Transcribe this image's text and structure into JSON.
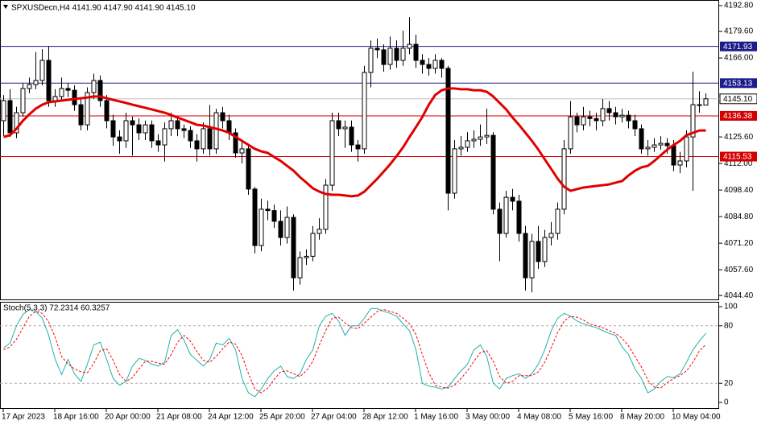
{
  "chart_data": {
    "type": "candlestick",
    "title": "SPXUSDecn,H4  4141.90 4147.90 4141.90 4145.10",
    "categories": [
      "17 Apr 2023",
      null,
      null,
      null,
      null,
      null,
      null,
      null,
      "18 Apr 16:00",
      null,
      null,
      null,
      null,
      null,
      null,
      null,
      "20 Apr 00:00",
      null,
      null,
      null,
      null,
      null,
      null,
      null,
      "21 Apr 08:00",
      null,
      null,
      null,
      null,
      null,
      null,
      null,
      "24 Apr 12:00",
      null,
      null,
      null,
      null,
      null,
      null,
      null,
      "25 Apr 20:00",
      null,
      null,
      null,
      null,
      null,
      null,
      null,
      "27 Apr 04:00",
      null,
      null,
      null,
      null,
      null,
      null,
      null,
      "28 Apr 12:00",
      null,
      null,
      null,
      null,
      null,
      null,
      null,
      "1 May 16:00",
      null,
      null,
      null,
      null,
      null,
      null,
      null,
      "3 May 00:00",
      null,
      null,
      null,
      null,
      null,
      null,
      null,
      "4 May 08:00",
      null,
      null,
      null,
      null,
      null,
      null,
      null,
      "5 May 16:00",
      null,
      null,
      null,
      null,
      null,
      null,
      null,
      "8 May 20:00",
      null,
      null,
      null,
      null,
      null,
      null,
      null,
      "10 May 04:00",
      null,
      null,
      null,
      null,
      null
    ],
    "ohlc": [
      [
        4133.9,
        4147.0,
        4126.0,
        4144.2
      ],
      [
        4144.2,
        4150.0,
        4125.5,
        4127.7
      ],
      [
        4127.7,
        4141.0,
        4125.0,
        4138.0
      ],
      [
        4138.0,
        4153.0,
        4136.0,
        4150.4
      ],
      [
        4150.4,
        4156.0,
        4148.0,
        4152.4
      ],
      [
        4152.4,
        4169.0,
        4150.0,
        4154.5
      ],
      [
        4154.5,
        4170.5,
        4152.0,
        4164.8
      ],
      [
        4164.8,
        4172.0,
        4141.0,
        4144.2
      ],
      [
        4144.2,
        4150.0,
        4141.0,
        4146.3
      ],
      [
        4146.3,
        4156.0,
        4144.0,
        4150.4
      ],
      [
        4150.4,
        4153.0,
        4146.0,
        4149.5
      ],
      [
        4149.5,
        4152.0,
        4139.0,
        4142.1
      ],
      [
        4142.1,
        4145.0,
        4129.0,
        4131.8
      ],
      [
        4131.8,
        4151.0,
        4129.0,
        4148.3
      ],
      [
        4148.3,
        4158.0,
        4145.0,
        4154.5
      ],
      [
        4154.5,
        4157.0,
        4141.0,
        4144.2
      ],
      [
        4144.2,
        4147.0,
        4130.0,
        4133.9
      ],
      [
        4133.9,
        4137.0,
        4121.0,
        4125.6
      ],
      [
        4125.6,
        4129.0,
        4117.0,
        4123.6
      ],
      [
        4123.6,
        4138.0,
        4120.0,
        4133.9
      ],
      [
        4133.9,
        4136.0,
        4116.0,
        4131.8
      ],
      [
        4131.8,
        4135.0,
        4124.0,
        4127.7
      ],
      [
        4127.7,
        4134.0,
        4124.0,
        4131.8
      ],
      [
        4131.8,
        4134.0,
        4120.0,
        4123.6
      ],
      [
        4123.6,
        4127.0,
        4118.0,
        4121.5
      ],
      [
        4121.5,
        4133.0,
        4113.0,
        4129.8
      ],
      [
        4129.8,
        4138.0,
        4126.0,
        4133.9
      ],
      [
        4133.9,
        4136.0,
        4126.0,
        4129.8
      ],
      [
        4129.8,
        4132.0,
        4125.0,
        4128.9
      ],
      [
        4128.9,
        4131.0,
        4120.0,
        4123.6
      ],
      [
        4123.6,
        4127.0,
        4113.0,
        4119.5
      ],
      [
        4119.5,
        4133.0,
        4117.0,
        4129.8
      ],
      [
        4129.8,
        4142.0,
        4116.0,
        4119.5
      ],
      [
        4119.5,
        4140.0,
        4117.0,
        4138.0
      ],
      [
        4138.0,
        4141.0,
        4130.0,
        4133.9
      ],
      [
        4133.9,
        4137.0,
        4124.0,
        4127.7
      ],
      [
        4127.7,
        4130.0,
        4115.0,
        4117.4
      ],
      [
        4117.4,
        4123.0,
        4112.0,
        4119.5
      ],
      [
        4119.5,
        4122.0,
        4096.0,
        4098.9
      ],
      [
        4098.9,
        4100.0,
        4066.0,
        4070.0
      ],
      [
        4070.0,
        4094.0,
        4067.0,
        4088.6
      ],
      [
        4088.6,
        4093.0,
        4083.0,
        4087.9
      ],
      [
        4087.9,
        4091.0,
        4079.0,
        4082.4
      ],
      [
        4082.4,
        4088.0,
        4070.0,
        4074.1
      ],
      [
        4074.1,
        4090.0,
        4071.0,
        4084.4
      ],
      [
        4084.4,
        4086.0,
        4047.0,
        4053.5
      ],
      [
        4053.5,
        4067.0,
        4050.0,
        4063.8
      ],
      [
        4063.8,
        4068.0,
        4060.0,
        4064.5
      ],
      [
        4064.5,
        4080.0,
        4062.0,
        4076.2
      ],
      [
        4076.2,
        4084.0,
        4073.0,
        4078.3
      ],
      [
        4078.3,
        4104.0,
        4076.0,
        4100.9
      ],
      [
        4100.9,
        4138.0,
        4098.0,
        4133.9
      ],
      [
        4133.9,
        4138.0,
        4126.0,
        4129.8
      ],
      [
        4129.8,
        4134.0,
        4120.0,
        4130.6
      ],
      [
        4130.6,
        4134.0,
        4118.0,
        4121.5
      ],
      [
        4121.5,
        4124.0,
        4113.0,
        4119.5
      ],
      [
        4119.5,
        4162.0,
        4117.0,
        4158.6
      ],
      [
        4158.6,
        4175.0,
        4151.0,
        4171.0
      ],
      [
        4171.0,
        4176.0,
        4166.0,
        4170.2
      ],
      [
        4170.2,
        4173.0,
        4159.0,
        4162.7
      ],
      [
        4162.7,
        4177.0,
        4160.0,
        4171.0
      ],
      [
        4171.0,
        4175.0,
        4161.0,
        4164.8
      ],
      [
        4164.8,
        4180.0,
        4162.0,
        4171.0
      ],
      [
        4171.0,
        4187.0,
        4168.0,
        4173.0
      ],
      [
        4173.0,
        4178.0,
        4161.0,
        4164.8
      ],
      [
        4164.8,
        4168.0,
        4158.0,
        4162.7
      ],
      [
        4162.7,
        4166.0,
        4157.0,
        4160.7
      ],
      [
        4160.7,
        4168.0,
        4158.0,
        4164.8
      ],
      [
        4164.8,
        4166.0,
        4156.0,
        4160.7
      ],
      [
        4160.7,
        4162.0,
        4088.0,
        4096.8
      ],
      [
        4096.8,
        4124.0,
        4094.0,
        4119.5
      ],
      [
        4119.5,
        4126.0,
        4116.0,
        4120.3
      ],
      [
        4120.3,
        4128.0,
        4118.0,
        4123.6
      ],
      [
        4123.6,
        4129.0,
        4120.0,
        4124.4
      ],
      [
        4124.4,
        4132.0,
        4121.0,
        4125.6
      ],
      [
        4125.6,
        4140.0,
        4122.0,
        4126.4
      ],
      [
        4126.4,
        4128.0,
        4086.0,
        4088.6
      ],
      [
        4088.6,
        4092.0,
        4062.0,
        4076.2
      ],
      [
        4076.2,
        4098.0,
        4074.0,
        4094.7
      ],
      [
        4094.7,
        4099.0,
        4088.0,
        4092.7
      ],
      [
        4092.7,
        4096.0,
        4072.0,
        4076.2
      ],
      [
        4076.2,
        4080.0,
        4047.0,
        4053.5
      ],
      [
        4053.5,
        4076.0,
        4046.0,
        4072.1
      ],
      [
        4072.1,
        4080.0,
        4058.0,
        4061.8
      ],
      [
        4061.8,
        4078.0,
        4059.0,
        4074.1
      ],
      [
        4074.1,
        4082.0,
        4070.0,
        4076.2
      ],
      [
        4076.2,
        4092.0,
        4073.0,
        4088.6
      ],
      [
        4088.6,
        4124.0,
        4086.0,
        4119.5
      ],
      [
        4119.5,
        4144.0,
        4117.0,
        4135.9
      ],
      [
        4135.9,
        4138.0,
        4128.0,
        4131.8
      ],
      [
        4131.8,
        4141.0,
        4129.0,
        4135.9
      ],
      [
        4135.9,
        4139.0,
        4131.0,
        4135.0
      ],
      [
        4135.0,
        4138.0,
        4129.0,
        4133.9
      ],
      [
        4133.9,
        4145.0,
        4131.0,
        4140.1
      ],
      [
        4140.1,
        4144.0,
        4134.0,
        4138.0
      ],
      [
        4138.0,
        4141.0,
        4132.0,
        4135.9
      ],
      [
        4135.9,
        4140.0,
        4133.0,
        4136.7
      ],
      [
        4136.7,
        4139.0,
        4130.0,
        4133.9
      ],
      [
        4133.9,
        4137.0,
        4126.0,
        4129.8
      ],
      [
        4129.8,
        4132.0,
        4117.0,
        4119.5
      ],
      [
        4119.5,
        4124.0,
        4116.0,
        4120.3
      ],
      [
        4120.3,
        4125.0,
        4118.0,
        4121.5
      ],
      [
        4121.5,
        4126.0,
        4119.0,
        4122.3
      ],
      [
        4122.3,
        4125.0,
        4117.0,
        4121.1
      ],
      [
        4121.1,
        4124.0,
        4108.0,
        4111.2
      ],
      [
        4111.2,
        4118.0,
        4107.0,
        4113.3
      ],
      [
        4113.3,
        4129.0,
        4110.0,
        4125.6
      ],
      [
        4125.6,
        4159.0,
        4098.0,
        4142.1
      ],
      [
        4142.1,
        4149.0,
        4138.0,
        4141.9
      ],
      [
        4141.9,
        4147.9,
        4141.9,
        4145.1
      ]
    ],
    "colors": {
      "up": "#ffffff",
      "down": "#000000",
      "outline": "#000000"
    },
    "ylim": [
      4042.0,
      4195.7
    ],
    "yticks": [
      {
        "value": 4192.8,
        "label": "4192.80"
      },
      {
        "value": 4179.6,
        "label": "4179.60"
      },
      {
        "value": 4166.0,
        "label": "4166.00"
      },
      {
        "value": 4125.6,
        "label": "4125.60"
      },
      {
        "value": 4112.0,
        "label": "4112.00"
      },
      {
        "value": 4098.4,
        "label": "4098.40"
      },
      {
        "value": 4084.8,
        "label": "4084.80"
      },
      {
        "value": 4071.2,
        "label": "4071.20"
      },
      {
        "value": 4057.6,
        "label": "4057.60"
      },
      {
        "value": 4044.4,
        "label": "4044.40"
      }
    ],
    "moving_average": {
      "color": "#e00000",
      "values": [
        4125.6,
        4126.5,
        4129.8,
        4133.9,
        4137.2,
        4140.1,
        4142.1,
        4143.4,
        4143.8,
        4144.2,
        4144.6,
        4145.0,
        4145.4,
        4145.8,
        4146.3,
        4146.3,
        4145.4,
        4144.6,
        4143.8,
        4143.0,
        4142.1,
        4141.3,
        4140.5,
        4139.7,
        4138.8,
        4138.0,
        4136.8,
        4135.5,
        4134.3,
        4133.1,
        4131.8,
        4131.4,
        4130.6,
        4129.8,
        4128.9,
        4127.7,
        4125.6,
        4123.6,
        4121.5,
        4119.5,
        4118.2,
        4117.4,
        4115.3,
        4113.3,
        4110.8,
        4108.3,
        4105.0,
        4102.2,
        4099.3,
        4097.6,
        4096.4,
        4096.0,
        4096.0,
        4095.6,
        4095.2,
        4095.6,
        4097.6,
        4100.9,
        4104.2,
        4107.9,
        4111.6,
        4115.8,
        4120.3,
        4125.6,
        4130.6,
        4135.9,
        4142.1,
        4147.1,
        4149.5,
        4150.4,
        4150.4,
        4150.0,
        4150.0,
        4149.5,
        4149.5,
        4148.7,
        4146.3,
        4143.0,
        4139.7,
        4135.5,
        4131.8,
        4127.7,
        4123.6,
        4119.1,
        4114.1,
        4109.2,
        4104.2,
        4100.1,
        4098.0,
        4098.9,
        4099.7,
        4100.1,
        4100.5,
        4100.9,
        4101.3,
        4102.2,
        4103.0,
        4105.9,
        4108.3,
        4110.0,
        4110.8,
        4113.3,
        4116.2,
        4119.1,
        4121.5,
        4123.6,
        4126.5,
        4127.7,
        4128.9,
        4128.9
      ]
    },
    "levels": [
      {
        "value": 4171.93,
        "color": "#1c1c8a"
      },
      {
        "value": 4153.13,
        "color": "#1c1c8a"
      },
      {
        "value": 4136.38,
        "color": "#d40000"
      },
      {
        "value": 4115.53,
        "color": "#d40000"
      }
    ],
    "last_price": {
      "value": 4145.1,
      "label": "4145.10",
      "color": "#c0c0c0"
    },
    "indicator": {
      "type": "line",
      "title": "Stoch(5,3,3) 72.2314 60.3257",
      "ylim": [
        -6.7,
        104.2
      ],
      "yticks": [
        0,
        20,
        80,
        100
      ],
      "levels": [
        20,
        80
      ],
      "main": {
        "color": "#20b2aa",
        "values": [
          57,
          62,
          80,
          92,
          97,
          95,
          88,
          70,
          45,
          29,
          45,
          30,
          22,
          40,
          60,
          63,
          45,
          25,
          18,
          22,
          38,
          46,
          44,
          40,
          38,
          42,
          70,
          76,
          65,
          50,
          44,
          38,
          45,
          62,
          60,
          67,
          55,
          25,
          10,
          6,
          14,
          25,
          33,
          38,
          27,
          25,
          30,
          45,
          55,
          80,
          90,
          93,
          85,
          70,
          80,
          80,
          88,
          98,
          98,
          95,
          93,
          90,
          82,
          75,
          55,
          20,
          17,
          16,
          14,
          16,
          25,
          33,
          40,
          55,
          60,
          48,
          20,
          14,
          25,
          28,
          30,
          25,
          30,
          40,
          55,
          75,
          88,
          93,
          90,
          85,
          82,
          80,
          78,
          75,
          72,
          70,
          58,
          50,
          35,
          25,
          10,
          14,
          22,
          27,
          26,
          30,
          42,
          55,
          64,
          72.2314
        ]
      },
      "signal": {
        "color": "#ff0000",
        "dashed": true,
        "values": [
          55,
          58,
          66,
          78,
          90,
          95,
          93,
          84,
          68,
          48,
          40,
          35,
          32,
          31,
          41,
          54,
          56,
          44,
          29,
          22,
          26,
          35,
          43,
          43,
          41,
          40,
          50,
          63,
          70,
          64,
          53,
          44,
          42,
          48,
          56,
          63,
          61,
          49,
          30,
          14,
          10,
          15,
          24,
          32,
          33,
          30,
          27,
          33,
          43,
          60,
          75,
          88,
          89,
          83,
          78,
          77,
          83,
          89,
          95,
          97,
          95,
          93,
          88,
          82,
          71,
          50,
          31,
          18,
          16,
          15,
          18,
          25,
          33,
          43,
          52,
          54,
          43,
          27,
          20,
          22,
          28,
          28,
          28,
          32,
          42,
          57,
          73,
          85,
          90,
          89,
          86,
          82,
          80,
          78,
          75,
          72,
          67,
          59,
          48,
          37,
          23,
          16,
          15,
          21,
          25,
          28,
          33,
          42,
          54,
          60.3257
        ]
      }
    }
  }
}
